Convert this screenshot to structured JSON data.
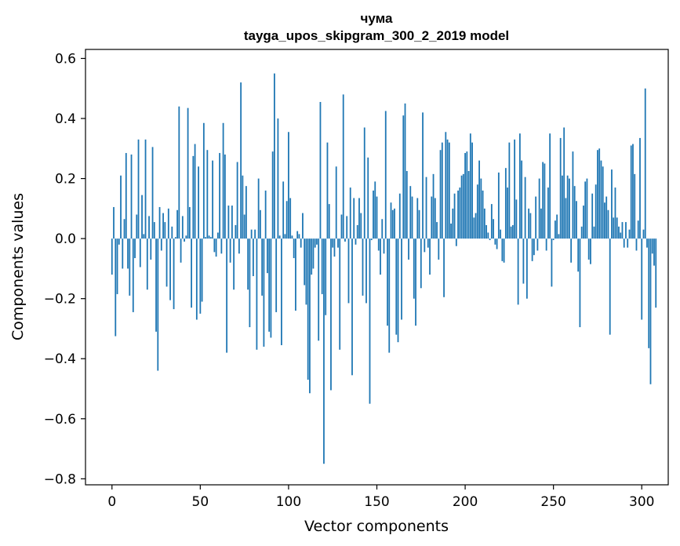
{
  "chart_data": {
    "type": "bar",
    "title": "чума",
    "subtitle": "tayga_upos_skipgram_300_2_2019 model",
    "xlabel": "Vector components",
    "ylabel": "Components values",
    "xlim": [
      -15,
      315
    ],
    "ylim": [
      -0.82,
      0.63
    ],
    "xticks": [
      0,
      50,
      100,
      150,
      200,
      250,
      300
    ],
    "yticks": [
      -0.8,
      -0.6,
      -0.4,
      -0.2,
      0.0,
      0.2,
      0.4,
      0.6
    ],
    "ytick_labels": [
      "−0.8",
      "−0.6",
      "−0.4",
      "−0.2",
      "0.0",
      "0.2",
      "0.4",
      "0.6"
    ],
    "bar_color": "#1f77b4",
    "grid": false,
    "values": [
      -0.12,
      0.105,
      -0.325,
      -0.185,
      -0.02,
      0.21,
      -0.1,
      0.065,
      0.285,
      -0.1,
      -0.19,
      0.28,
      -0.245,
      -0.065,
      0.08,
      0.33,
      -0.095,
      0.145,
      0.015,
      0.33,
      -0.17,
      0.075,
      -0.07,
      0.305,
      0.055,
      -0.31,
      -0.44,
      0.105,
      -0.04,
      0.085,
      0.055,
      -0.16,
      0.1,
      -0.205,
      0.04,
      -0.235,
      0.005,
      0.095,
      0.44,
      -0.08,
      0.075,
      -0.01,
      0.01,
      0.435,
      0.105,
      -0.23,
      0.275,
      0.315,
      -0.27,
      0.24,
      -0.25,
      -0.21,
      0.385,
      0.005,
      0.295,
      0.01,
      0.005,
      0.26,
      -0.045,
      -0.06,
      0.02,
      0.285,
      -0.05,
      0.385,
      0.28,
      -0.38,
      0.11,
      -0.08,
      0.11,
      -0.17,
      0.045,
      0.255,
      -0.05,
      0.52,
      0.21,
      0.08,
      0.175,
      -0.17,
      -0.295,
      0.03,
      -0.125,
      0.03,
      -0.37,
      0.2,
      0.095,
      -0.19,
      -0.36,
      0.16,
      -0.115,
      -0.31,
      -0.33,
      0.29,
      0.55,
      -0.245,
      0.4,
      0.01,
      -0.355,
      0.19,
      0.015,
      0.125,
      0.355,
      0.135,
      0.01,
      -0.065,
      -0.24,
      0.025,
      0.015,
      -0.03,
      0.085,
      -0.155,
      -0.22,
      -0.47,
      -0.515,
      -0.12,
      -0.1,
      -0.03,
      -0.02,
      -0.34,
      0.455,
      -0.185,
      -0.75,
      -0.255,
      0.32,
      0.115,
      -0.505,
      -0.03,
      -0.06,
      0.24,
      -0.03,
      -0.37,
      0.08,
      0.48,
      -0.01,
      0.075,
      -0.215,
      0.17,
      -0.455,
      0.135,
      -0.02,
      0.045,
      0.135,
      0.085,
      -0.19,
      0.37,
      -0.215,
      0.27,
      -0.55,
      -0.005,
      0.16,
      0.19,
      0.14,
      -0.04,
      -0.12,
      0.065,
      -0.05,
      0.425,
      -0.29,
      -0.38,
      0.12,
      0.095,
      0.1,
      -0.32,
      -0.345,
      0.15,
      -0.27,
      0.41,
      0.45,
      0.225,
      -0.07,
      0.175,
      0.14,
      -0.2,
      -0.29,
      0.135,
      0.095,
      -0.165,
      0.42,
      -0.045,
      0.205,
      -0.03,
      -0.12,
      0.14,
      0.215,
      0.135,
      0.055,
      -0.07,
      0.295,
      0.32,
      -0.195,
      0.355,
      0.33,
      0.32,
      0.05,
      0.1,
      0.15,
      -0.025,
      0.16,
      0.17,
      0.21,
      0.215,
      0.285,
      0.29,
      0.225,
      0.35,
      0.32,
      0.07,
      0.085,
      0.18,
      0.26,
      0.2,
      0.16,
      0.1,
      0.045,
      0.02,
      -0.005,
      0.115,
      0.065,
      -0.02,
      -0.035,
      0.22,
      0.03,
      -0.075,
      -0.08,
      0.235,
      0.17,
      0.32,
      0.04,
      0.045,
      0.33,
      0.13,
      -0.22,
      0.35,
      0.26,
      -0.15,
      0.205,
      -0.2,
      0.1,
      0.085,
      -0.075,
      -0.055,
      0.14,
      -0.04,
      0.2,
      0.1,
      0.255,
      0.25,
      -0.04,
      0.17,
      0.35,
      -0.16,
      -0.005,
      0.06,
      0.08,
      0.015,
      0.335,
      0.21,
      0.37,
      0.135,
      0.21,
      0.2,
      -0.08,
      0.29,
      0.175,
      0.125,
      -0.11,
      -0.295,
      0.04,
      0.11,
      0.19,
      0.2,
      -0.07,
      -0.085,
      0.15,
      0.04,
      0.18,
      0.295,
      0.3,
      0.26,
      0.24,
      0.12,
      0.14,
      0.095,
      -0.32,
      0.23,
      0.07,
      0.17,
      0.07,
      0.04,
      0.02,
      0.055,
      -0.03,
      0.055,
      -0.03,
      0.03,
      0.31,
      0.315,
      0.215,
      -0.04,
      0.06,
      0.335,
      -0.27,
      0.03,
      0.5,
      -0.03,
      -0.365,
      -0.485,
      -0.05,
      -0.09,
      -0.23
    ]
  }
}
